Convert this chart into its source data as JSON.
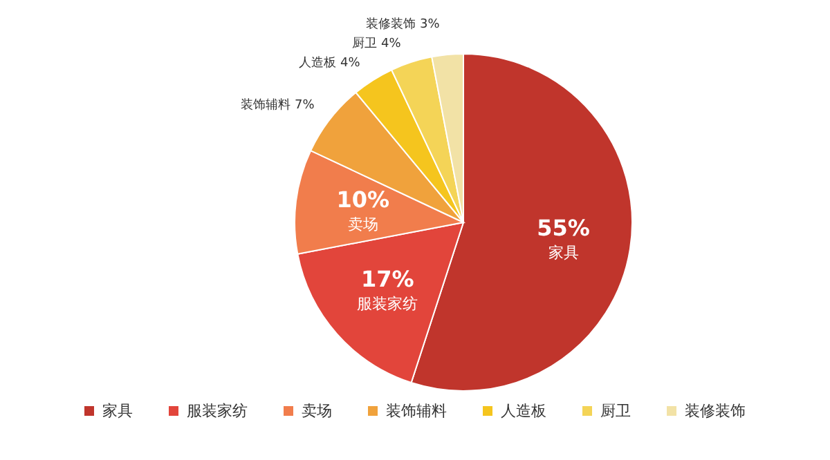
{
  "chart_data": {
    "type": "pie",
    "categories": [
      "家具",
      "服装家纺",
      "卖场",
      "装饰辅料",
      "人造板",
      "厨卫",
      "装修装饰"
    ],
    "values": [
      55,
      17,
      10,
      7,
      4,
      4,
      3
    ],
    "value_labels": [
      "55%",
      "17%",
      "10%",
      "7%",
      "4%",
      "4%",
      "3%"
    ],
    "colors": [
      "#c0352c",
      "#e2453b",
      "#f17d4c",
      "#f0a23c",
      "#f5c51e",
      "#f4d457",
      "#f2e2a6"
    ],
    "legend": "bottom"
  }
}
